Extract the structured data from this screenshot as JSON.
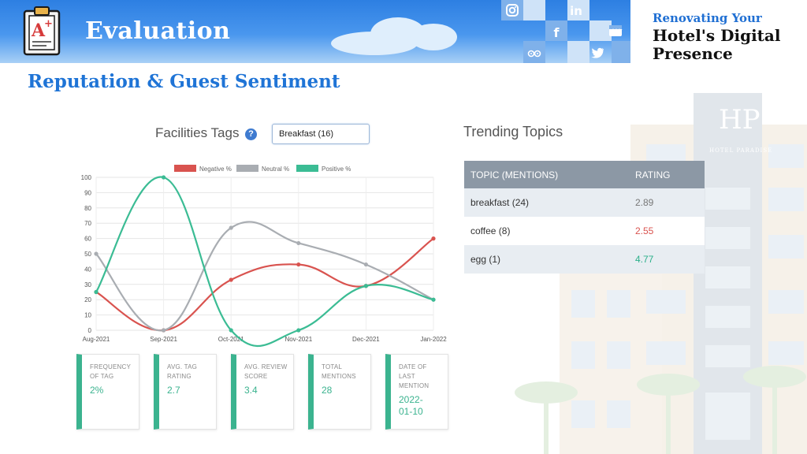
{
  "header": {
    "section_title": "Evaluation",
    "series_subtitle": "Renovating Your",
    "series_title": "Hotel's Digital Presence",
    "social_icons": [
      "instagram-icon",
      "linkedin-icon",
      "facebook-icon",
      "google-my-business-icon",
      "tripadvisor-icon",
      "twitter-icon"
    ]
  },
  "slide": {
    "heading": "Reputation & Guest Sentiment"
  },
  "background": {
    "hotel_sign_letters": "HP",
    "hotel_sign_text": "HOTEL PARADISE"
  },
  "facilities": {
    "label": "Facilities Tags",
    "help_icon": "?",
    "selected_tag": "Breakfast (16)"
  },
  "chart_data": {
    "type": "line",
    "x": [
      "Aug-2021",
      "Sep-2021",
      "Oct-2021",
      "Nov-2021",
      "Dec-2021",
      "Jan-2022"
    ],
    "ylim": [
      0,
      100
    ],
    "yticks": [
      0,
      10,
      20,
      30,
      40,
      50,
      60,
      70,
      80,
      90,
      100
    ],
    "grid": true,
    "legend_position": "top-center",
    "series": [
      {
        "name": "Negative %",
        "color": "#d9534f",
        "values": [
          25,
          0,
          33,
          43,
          29,
          60
        ]
      },
      {
        "name": "Neutral %",
        "color": "#a9adb2",
        "values": [
          50,
          0,
          67,
          57,
          43,
          20
        ]
      },
      {
        "name": "Positive %",
        "color": "#3bbc94",
        "values": [
          25,
          100,
          0,
          0,
          29,
          20
        ]
      }
    ]
  },
  "kpis": [
    {
      "label_lines": [
        "FREQUENCY",
        "OF TAG"
      ],
      "value_lines": [
        "2%"
      ]
    },
    {
      "label_lines": [
        "AVG. TAG",
        "RATING"
      ],
      "value_lines": [
        "2.7"
      ]
    },
    {
      "label_lines": [
        "AVG. REVIEW",
        "SCORE"
      ],
      "value_lines": [
        "3.4"
      ]
    },
    {
      "label_lines": [
        "TOTAL",
        "MENTIONS"
      ],
      "value_lines": [
        "28"
      ]
    },
    {
      "label_lines": [
        "DATE OF",
        "LAST",
        "MENTION"
      ],
      "value_lines": [
        "2022-",
        "01-10"
      ]
    }
  ],
  "trending": {
    "title": "Trending Topics",
    "columns": [
      "TOPIC (MENTIONS)",
      "RATING"
    ],
    "rows": [
      {
        "topic": "breakfast (24)",
        "rating": "2.89",
        "rating_color": "#777777"
      },
      {
        "topic": "coffee (8)",
        "rating": "2.55",
        "rating_color": "#d9534f"
      },
      {
        "topic": "egg (1)",
        "rating": "4.77",
        "rating_color": "#2bb08a"
      }
    ]
  }
}
